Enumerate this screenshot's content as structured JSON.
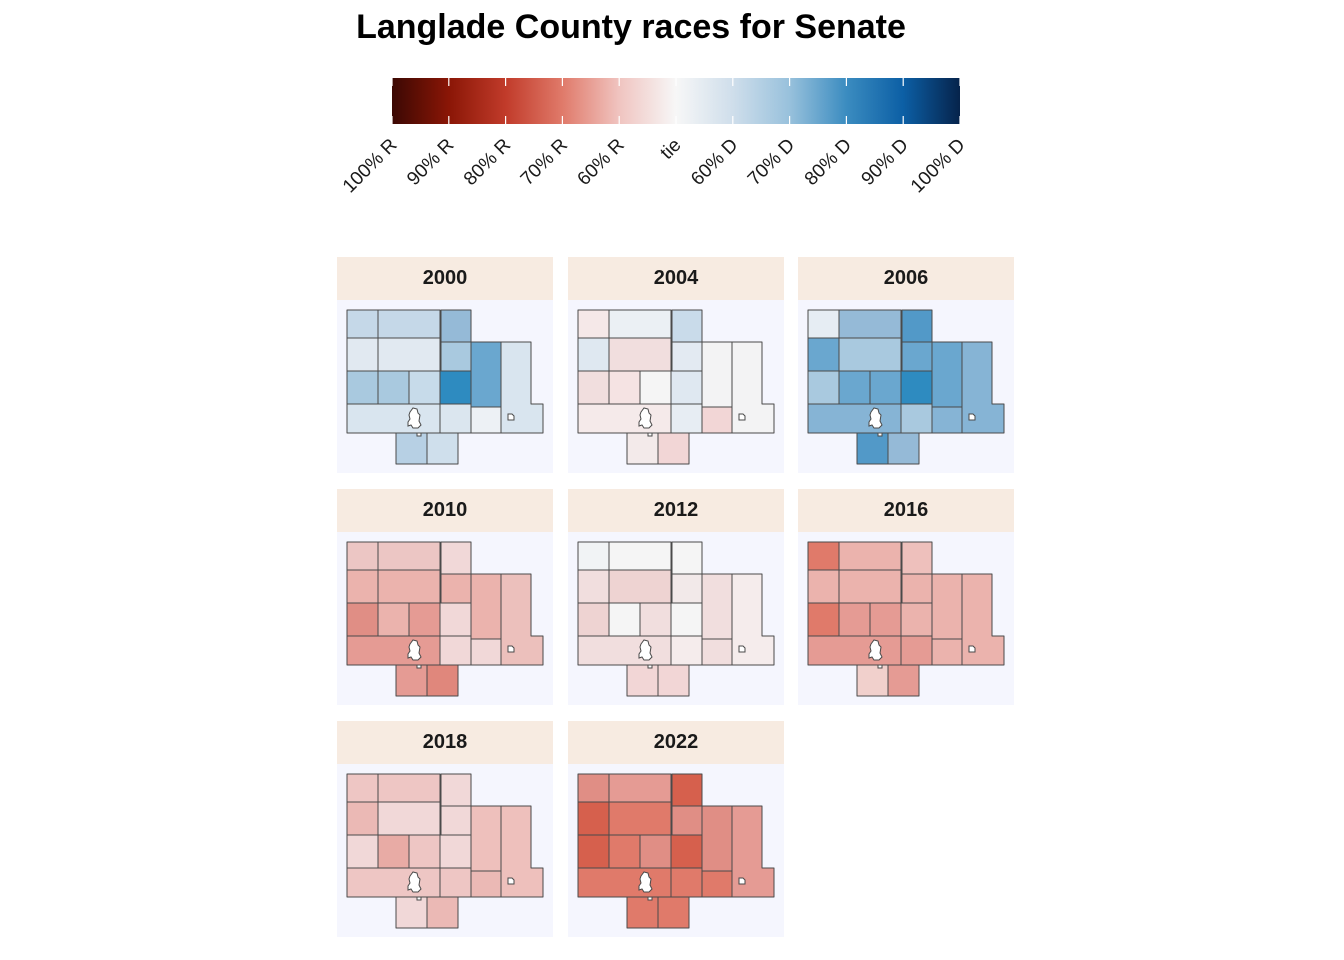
{
  "title": "Langlade County races for Senate",
  "legend": {
    "labels": [
      "100% R",
      "90% R",
      "80% R",
      "70% R",
      "60% R",
      "tie",
      "60% D",
      "70% D",
      "80% D",
      "90% D",
      "100% D"
    ],
    "colors": [
      "#3b0803",
      "#8a1606",
      "#c13b2a",
      "#e07a6a",
      "#f0c4c0",
      "#f7f7f7",
      "#cfdeeb",
      "#98c1dc",
      "#3b8cc0",
      "#0c5fa5",
      "#06234b"
    ]
  },
  "colors": {
    "strip_bg": "#f7ebe1",
    "map_bg": "#f5f6fe",
    "outline": "#4a4a4a"
  },
  "panels": [
    {
      "year": "2000",
      "fills": [
        "#c5d8e8",
        "#c5d8e8",
        "#c5d8e8",
        "#95bad7",
        "#6aa7cf",
        "#d9e5ef",
        "#e1e9f1",
        "#e1e9f1",
        "#a9c9df",
        "#a9c9df",
        "#c7dbea",
        "#2e8bc0",
        "#a9c9df",
        "#dbe6ef",
        "#edf1f5",
        "#d9e5ef",
        "#b7d0e4",
        "#cfdfec"
      ]
    },
    {
      "year": "2004",
      "fills": [
        "#f5e8e8",
        "#ebf0f4",
        "#ebf0f4",
        "#c9dbea",
        "#f3f3f4",
        "#f3f3f4",
        "#dfe8f1",
        "#f1dede",
        "#f1dede",
        "#f5e3e3",
        "#f5f5f5",
        "#dfe8f1",
        "#e3eaf2",
        "#e7edf3",
        "#f2d6d6",
        "#f5eaea",
        "#f3eaea",
        "#f2d6d6"
      ]
    },
    {
      "year": "2006",
      "fills": [
        "#e6edf3",
        "#95bad7",
        "#95bad7",
        "#5299c8",
        "#6aa7cf",
        "#86b4d5",
        "#6aa7cf",
        "#a9c9df",
        "#a9c9df",
        "#6aa7cf",
        "#6aa7cf",
        "#2e8bc0",
        "#6aa7cf",
        "#a9c9df",
        "#86b4d5",
        "#86b4d5",
        "#5299c8",
        "#95bad7"
      ]
    },
    {
      "year": "2010",
      "fills": [
        "#ecc6c4",
        "#ecc6c4",
        "#ecc6c4",
        "#f1d8d8",
        "#ebb3ad",
        "#ecc0bc",
        "#ebb3ad",
        "#ebb3ad",
        "#e08e85",
        "#ebb3ad",
        "#e59b94",
        "#f1d8d8",
        "#ebb3ad",
        "#f1d8d8",
        "#f1d8d8",
        "#e59b94",
        "#e59b94",
        "#e0877c"
      ]
    },
    {
      "year": "2012",
      "fills": [
        "#f1f3f5",
        "#f5f5f5",
        "#f5f5f5",
        "#f5f5f5",
        "#f1dede",
        "#f5ecec",
        "#f1dede",
        "#eed3d2",
        "#eed3d2",
        "#f5f5f5",
        "#f1dede",
        "#f5f5f5",
        "#f2e9e9",
        "#f5ecec",
        "#f1dede",
        "#f1dede",
        "#f2d6d6",
        "#f2d6d6"
      ]
    },
    {
      "year": "2016",
      "fills": [
        "#e07a6a",
        "#ebb3ad",
        "#ebb3ad",
        "#eec0bc",
        "#ebb3ad",
        "#ebb3ad",
        "#ebb3ad",
        "#ebb3ad",
        "#e07a6a",
        "#e59b94",
        "#e59b94",
        "#ebb3ad",
        "#ebb3ad",
        "#e59b94",
        "#ebb3ad",
        "#e59b94",
        "#f1d0cc",
        "#e59b94"
      ]
    },
    {
      "year": "2018",
      "fills": [
        "#eec6c4",
        "#eec6c4",
        "#eec6c4",
        "#f1d8d8",
        "#eec0bc",
        "#eec0bc",
        "#ebb9b5",
        "#f1d8d8",
        "#f1d8d8",
        "#e8aba5",
        "#eec6c4",
        "#f1d8d8",
        "#f1d8d8",
        "#eec6c4",
        "#ebb9b5",
        "#eec6c4",
        "#f1d8d8",
        "#ebb9b5"
      ]
    },
    {
      "year": "2022",
      "fills": [
        "#e08e85",
        "#e59b94",
        "#e59b94",
        "#d6604d",
        "#e08e85",
        "#e59b94",
        "#d6604d",
        "#e07a6a",
        "#d6604d",
        "#e07a6a",
        "#e08e85",
        "#d6604d",
        "#e08e85",
        "#e07a6a",
        "#e07a6a",
        "#e07a6a",
        "#e07a6a",
        "#e07a6a"
      ]
    }
  ]
}
